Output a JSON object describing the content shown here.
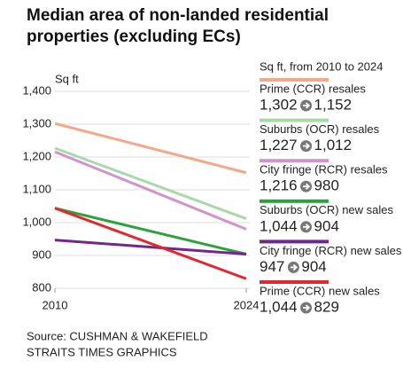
{
  "chart_data": {
    "type": "line",
    "title": "Median area of non-landed residential properties (excluding ECs)",
    "y_label": "Sq ft",
    "legend_title": "Sq ft, from 2010 to 2024",
    "source": [
      "Source: CUSHMAN & WAKEFIELD",
      "STRAITS TIMES GRAPHICS"
    ],
    "x": [
      2010,
      2024
    ],
    "xlim": [
      2010,
      2024
    ],
    "xticks": [
      2010,
      2024
    ],
    "ylim": [
      800,
      1400
    ],
    "yticks": [
      800,
      900,
      {
        "value": 1000,
        "label": "1,000"
      },
      {
        "value": 1100,
        "label": "1,100"
      },
      {
        "value": 1200,
        "label": "1,200"
      },
      {
        "value": 1300,
        "label": "1,300"
      },
      {
        "value": 1400,
        "label": "1,400"
      }
    ],
    "grid": true,
    "legend": "right",
    "series": [
      {
        "name": "Prime (CCR) resales",
        "color": "#f2a98a",
        "values": [
          1302,
          1152
        ],
        "value_labels": [
          "1,302",
          "1,152"
        ]
      },
      {
        "name": "Suburbs (OCR) resales",
        "color": "#a9d9a9",
        "values": [
          1227,
          1012
        ],
        "value_labels": [
          "1,227",
          "1,012"
        ]
      },
      {
        "name": "City fringe (RCR) resales",
        "color": "#cf94cc",
        "values": [
          1216,
          980
        ],
        "value_labels": [
          "1,216",
          "980"
        ]
      },
      {
        "name": "Suburbs (OCR) new sales",
        "color": "#2aa33a",
        "values": [
          1044,
          904
        ],
        "value_labels": [
          "1,044",
          "904"
        ]
      },
      {
        "name": "City fringe (RCR) new sales",
        "color": "#74268c",
        "values": [
          947,
          904
        ],
        "value_labels": [
          "947",
          "904"
        ]
      },
      {
        "name": "Prime (CCR) new sales",
        "color": "#e0282e",
        "values": [
          1044,
          829
        ],
        "value_labels": [
          "1,044",
          "829"
        ]
      }
    ]
  }
}
